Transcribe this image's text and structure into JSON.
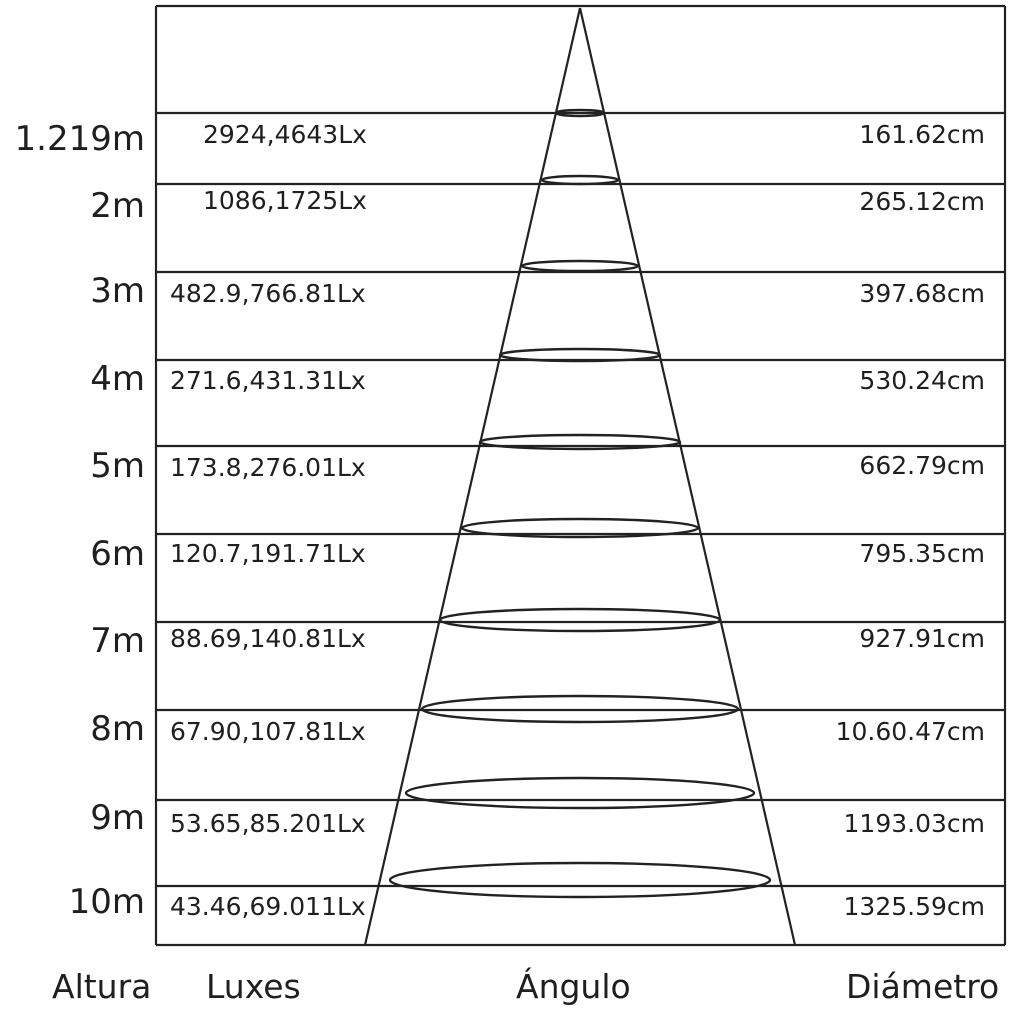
{
  "rows": [
    {
      "height": "1.219m",
      "lux": "2924,4643Lx",
      "diameter": "161.62cm"
    },
    {
      "height": "2m",
      "lux": "1086,1725Lx",
      "diameter": "265.12cm"
    },
    {
      "height": "3m",
      "lux": "482.9,766.81Lx",
      "diameter": "397.68cm"
    },
    {
      "height": "4m",
      "lux": "271.6,431.31Lx",
      "diameter": "530.24cm"
    },
    {
      "height": "5m",
      "lux": "173.8,276.01Lx",
      "diameter": "662.79cm"
    },
    {
      "height": "6m",
      "lux": "120.7,191.71Lx",
      "diameter": "795.35cm"
    },
    {
      "height": "7m",
      "lux": "88.69,140.81Lx",
      "diameter": "927.91cm"
    },
    {
      "height": "8m",
      "lux": "67.90,107.81Lx",
      "diameter": "10.60.47cm"
    },
    {
      "height": "9m",
      "lux": "53.65,85.201Lx",
      "diameter": "1193.03cm"
    },
    {
      "height": "10m",
      "lux": "43.46,69.011Lx",
      "diameter": "1325.59cm"
    }
  ],
  "footer": {
    "height_label": "Altura",
    "lux_label": "Luxes",
    "angle_label": "Ángulo",
    "diameter_label": "Diámetro"
  }
}
